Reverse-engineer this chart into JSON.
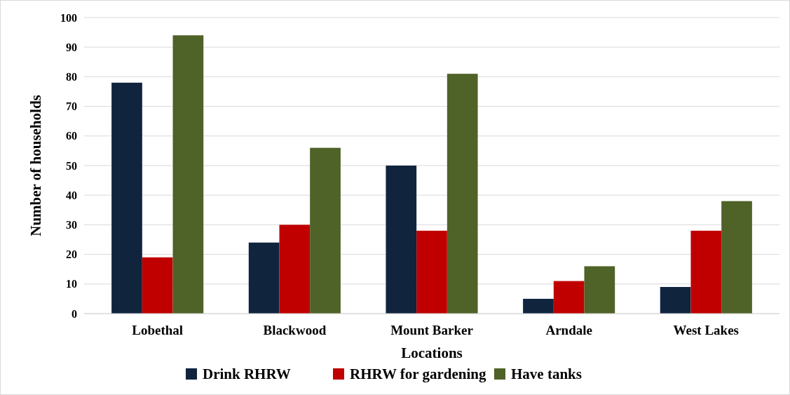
{
  "chart_data": {
    "type": "bar",
    "xlabel": "Locations",
    "ylabel": "Number of households",
    "categories": [
      "Lobethal",
      "Blackwood",
      "Mount Barker",
      "Arndale",
      "West Lakes"
    ],
    "series": [
      {
        "name": "Drink RHRW",
        "color": "#10243e",
        "values": [
          78,
          24,
          50,
          5,
          9
        ]
      },
      {
        "name": "RHRW for gardening",
        "color": "#c00000",
        "values": [
          19,
          30,
          28,
          11,
          28
        ]
      },
      {
        "name": "Have tanks",
        "color": "#4f6228",
        "values": [
          94,
          56,
          81,
          16,
          38
        ]
      }
    ],
    "ylim": [
      0,
      100
    ],
    "yticks": [
      0,
      10,
      20,
      30,
      40,
      50,
      60,
      70,
      80,
      90,
      100
    ],
    "grid": "y",
    "legend": "bottom"
  }
}
